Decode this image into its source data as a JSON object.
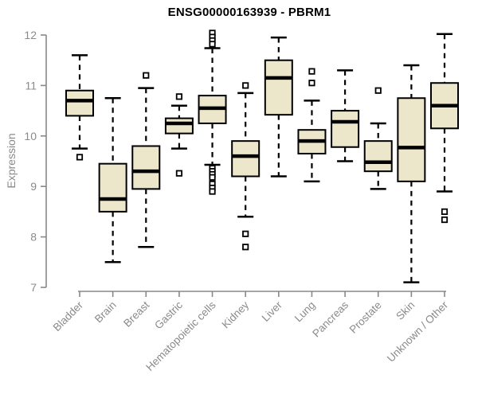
{
  "chart_data": {
    "type": "boxplot",
    "title": "ENSG00000163939 - PBRM1",
    "ylabel": "Expression",
    "xlabel": "",
    "ylim": [
      7,
      12
    ],
    "yticks": [
      7,
      8,
      9,
      10,
      11,
      12
    ],
    "grid": "off",
    "legend": "none",
    "categories": [
      "Bladder",
      "Brain",
      "Breast",
      "Gastric",
      "Hematopoietic cells",
      "Kidney",
      "Liver",
      "Lung",
      "Pancreas",
      "Prostate",
      "Skin",
      "Unknown / Other"
    ],
    "series": [
      {
        "category": "Bladder",
        "whisker_low": 9.75,
        "q1": 10.4,
        "median": 10.7,
        "q3": 10.9,
        "whisker_high": 11.6,
        "outliers": [
          9.58
        ]
      },
      {
        "category": "Brain",
        "whisker_low": 7.5,
        "q1": 8.5,
        "median": 8.75,
        "q3": 9.45,
        "whisker_high": 10.75,
        "outliers": []
      },
      {
        "category": "Breast",
        "whisker_low": 7.8,
        "q1": 8.95,
        "median": 9.3,
        "q3": 9.8,
        "whisker_high": 10.95,
        "outliers": [
          11.2
        ]
      },
      {
        "category": "Gastric",
        "whisker_low": 9.75,
        "q1": 10.05,
        "median": 10.25,
        "q3": 10.35,
        "whisker_high": 10.6,
        "outliers": [
          10.78,
          9.26
        ]
      },
      {
        "category": "Hematopoietic cells",
        "whisker_low": 9.43,
        "q1": 10.25,
        "median": 10.55,
        "q3": 10.8,
        "whisker_high": 11.74,
        "outliers": [
          12.04,
          11.96,
          11.89,
          11.82,
          9.36,
          9.3,
          9.24,
          9.18,
          9.05,
          8.97,
          8.9
        ]
      },
      {
        "category": "Kidney",
        "whisker_low": 8.4,
        "q1": 9.2,
        "median": 9.6,
        "q3": 9.9,
        "whisker_high": 10.85,
        "outliers": [
          11.0,
          8.06,
          7.8
        ]
      },
      {
        "category": "Liver",
        "whisker_low": 9.2,
        "q1": 10.42,
        "median": 11.15,
        "q3": 11.5,
        "whisker_high": 11.95,
        "outliers": []
      },
      {
        "category": "Lung",
        "whisker_low": 9.1,
        "q1": 9.65,
        "median": 9.9,
        "q3": 10.12,
        "whisker_high": 10.7,
        "outliers": [
          11.28,
          11.05
        ]
      },
      {
        "category": "Pancreas",
        "whisker_low": 9.5,
        "q1": 9.78,
        "median": 10.28,
        "q3": 10.5,
        "whisker_high": 11.3,
        "outliers": []
      },
      {
        "category": "Prostate",
        "whisker_low": 8.95,
        "q1": 9.3,
        "median": 9.48,
        "q3": 9.9,
        "whisker_high": 10.25,
        "outliers": [
          10.9
        ]
      },
      {
        "category": "Skin",
        "whisker_low": 7.1,
        "q1": 9.1,
        "median": 9.77,
        "q3": 10.75,
        "whisker_high": 11.4,
        "outliers": []
      },
      {
        "category": "Unknown / Other",
        "whisker_low": 8.9,
        "q1": 10.15,
        "median": 10.6,
        "q3": 11.05,
        "whisker_high": 12.02,
        "outliers": [
          8.5,
          8.34
        ]
      }
    ],
    "style": {
      "box_fill": "#ECE6CA",
      "box_stroke": "#000000",
      "whisker_color": "#000000",
      "axis_color": "#888888",
      "tick_text_color": "#8a8a8a",
      "title_color": "#000000",
      "background": "#ffffff"
    }
  }
}
